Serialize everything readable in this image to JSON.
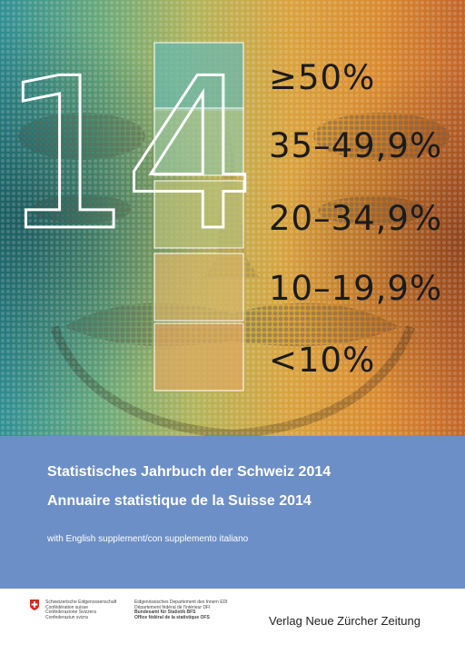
{
  "cover": {
    "big_number": "14",
    "legend": [
      {
        "label": "≥50%",
        "color": "#63b8b4"
      },
      {
        "label": "35–49,9%",
        "color": "#97c4a0"
      },
      {
        "label": "20–34,9%",
        "color": "#b9c079"
      },
      {
        "label": "10–19,9%",
        "color": "#d7b568"
      },
      {
        "label": "<10%",
        "color": "#e0a860"
      }
    ]
  },
  "titles": {
    "german": "Statistisches Jahrbuch der Schweiz 2014",
    "french": "Annuaire statistique de la Suisse 2014",
    "supplement": "with English supplement/con supplemento italiano"
  },
  "footer": {
    "confederation": [
      "Schweizerische Eidgenossenschaft",
      "Confédération suisse",
      "Confederazione Svizzera",
      "Confederaziun svizra"
    ],
    "department": [
      "Eidgenössisches Departement des Innern EDI",
      "Département fédéral de l'intérieur DFI"
    ],
    "office": [
      "Bundesamt für Statistik BFS",
      "Office fédéral de la statistique OFS"
    ],
    "publisher": "Verlag Neue Zürcher Zeitung"
  },
  "colors": {
    "band": "#6d8fc7",
    "crest_red": "#d52b1e"
  }
}
